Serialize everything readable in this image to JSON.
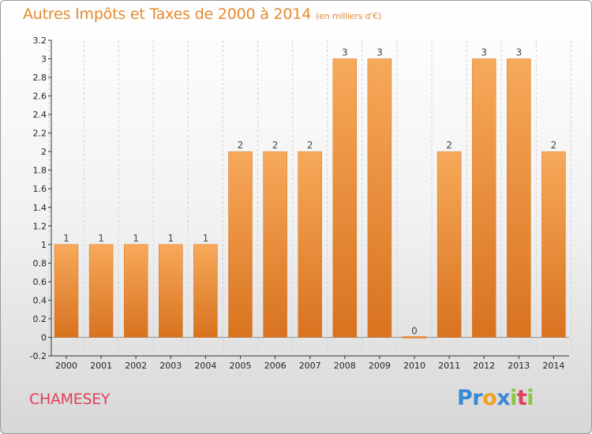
{
  "header": {
    "title": "Autres Impôts et Taxes de 2000 à 2014",
    "unit": "(en milliers d'€)"
  },
  "footer": {
    "commune": "CHAMESEY",
    "logo_letters": [
      "P",
      "r",
      "o",
      "x",
      "i",
      "t",
      "i"
    ]
  },
  "colors": {
    "title": "#e58a2e",
    "commune": "#e0405a",
    "bar_light": "#f7a95a",
    "bar_dark": "#d8731f",
    "logo": [
      "#3a87d6",
      "#3a87d6",
      "#f0a020",
      "#3a87d6",
      "#8cc63f",
      "#e0405a",
      "#8cc63f"
    ]
  },
  "chart_data": {
    "type": "bar",
    "title": "Autres Impôts et Taxes de 2000 à 2014",
    "subtitle": "(en milliers d'€)",
    "categories": [
      "2000",
      "2001",
      "2002",
      "2003",
      "2004",
      "2005",
      "2006",
      "2007",
      "2008",
      "2009",
      "2010",
      "2011",
      "2012",
      "2013",
      "2014"
    ],
    "values": [
      1,
      1,
      1,
      1,
      1,
      2,
      2,
      2,
      3,
      3,
      0,
      2,
      3,
      3,
      2
    ],
    "data_labels": [
      "1",
      "1",
      "1",
      "1",
      "1",
      "2",
      "2",
      "2",
      "3",
      "3",
      "0",
      "2",
      "3",
      "3",
      "2"
    ],
    "ylim": [
      -0.2,
      3.2
    ],
    "yticks": [
      -0.2,
      0,
      0.2,
      0.4,
      0.6,
      0.8,
      1,
      1.2,
      1.4,
      1.6,
      1.8,
      2,
      2.2,
      2.4,
      2.6,
      2.8,
      3,
      3.2
    ],
    "ytick_labels": [
      "-0.2",
      "0",
      "0.2",
      "0.4",
      "0.6",
      "0.8",
      "1",
      "1.2",
      "1.4",
      "1.6",
      "1.8",
      "2",
      "2.2",
      "2.4",
      "2.6",
      "2.8",
      "3",
      "3.2"
    ],
    "xlabel": "",
    "ylabel": "",
    "grid": "vertical dashed",
    "legend": "none"
  }
}
